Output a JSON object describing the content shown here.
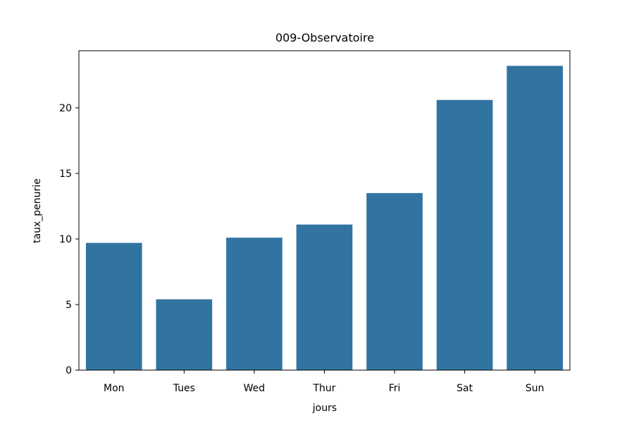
{
  "chart_data": {
    "type": "bar",
    "title": "009-Observatoire",
    "xlabel": "jours",
    "ylabel": "taux_penurie",
    "categories": [
      "Mon",
      "Tues",
      "Wed",
      "Thur",
      "Fri",
      "Sat",
      "Sun"
    ],
    "values": [
      9.7,
      5.4,
      10.1,
      11.1,
      13.5,
      20.6,
      23.2
    ],
    "ylim": [
      0,
      24.35
    ],
    "yticks": [
      "0",
      "5",
      "10",
      "15",
      "20"
    ],
    "bar_color": "#3274a1",
    "grid": false,
    "legend": "none"
  }
}
